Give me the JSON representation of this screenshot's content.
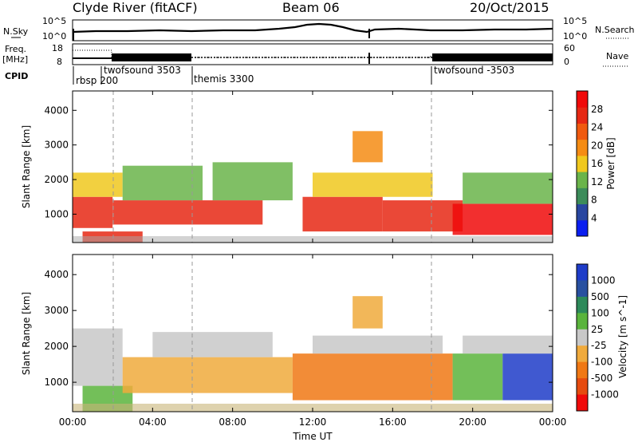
{
  "header": {
    "station": "Clyde River (fitACF)",
    "beam": "Beam 06",
    "date": "20/Oct/2015"
  },
  "strips": {
    "nsky_label": "N.Sky",
    "nsearch_label": "N.Search",
    "left_ticks": [
      "10^5",
      "10^0"
    ],
    "right_ticks": [
      "10^5",
      "10^0"
    ],
    "freq_label_line1": "Freq.",
    "freq_label_line2": "[MHz]",
    "freq_ticks": [
      "18",
      "8"
    ],
    "nave_label": "Nave",
    "nave_ticks": [
      "60",
      "0"
    ],
    "cpid_label": "CPID",
    "cpid_segments": [
      "rbsp 200",
      "twofsound 3503",
      "themis 3300",
      "twofsound -3503"
    ]
  },
  "colors": {
    "power_scale": [
      "#0a1ef0",
      "#2846a0",
      "#3c8c5a",
      "#6ab44a",
      "#f0c81e",
      "#f58c14",
      "#f05a0f",
      "#e62814",
      "#f00a0a"
    ],
    "velocity_scale": [
      "#1e3cc8",
      "#2850a0",
      "#2d8a5a",
      "#5ab43c",
      "#c8c8c8",
      "#f0aa3c",
      "#f07814",
      "#e64b0f",
      "#f00a0a"
    ],
    "ground_scatter": "#a8a8a8"
  },
  "chart_data": [
    {
      "type": "heatmap",
      "title": "",
      "xlabel": "",
      "ylabel": "Slant Range [km]",
      "xlim": [
        "00:00",
        "00:00"
      ],
      "ylim": [
        180,
        4560
      ],
      "x_ticks": [
        "00:00",
        "04:00",
        "08:00",
        "12:00",
        "16:00",
        "20:00",
        "00:00"
      ],
      "y_ticks": [
        "1000",
        "2000",
        "3000",
        "4000"
      ],
      "colorbar": {
        "label": "Power [dB]",
        "tick_labels": [
          "4",
          "8",
          "12",
          "16",
          "20",
          "24",
          "28"
        ],
        "range": [
          0,
          32
        ]
      },
      "bands": [
        {
          "t": [
            0.0,
            2.0
          ],
          "range_km": [
            600,
            1500
          ],
          "value": 26
        },
        {
          "t": [
            0.0,
            2.5
          ],
          "range_km": [
            1500,
            2200
          ],
          "value": 16
        },
        {
          "t": [
            2.0,
            6.0
          ],
          "range_km": [
            700,
            1400
          ],
          "value": 27
        },
        {
          "t": [
            2.5,
            6.5
          ],
          "range_km": [
            1400,
            2400
          ],
          "value": 14
        },
        {
          "t": [
            6.0,
            9.5
          ],
          "range_km": [
            700,
            1400
          ],
          "value": 27
        },
        {
          "t": [
            7.0,
            11.0
          ],
          "range_km": [
            1400,
            2500
          ],
          "value": 13
        },
        {
          "t": [
            11.5,
            15.5
          ],
          "range_km": [
            500,
            1500
          ],
          "value": 28
        },
        {
          "t": [
            12.0,
            18.0
          ],
          "range_km": [
            1500,
            2200
          ],
          "value": 15
        },
        {
          "t": [
            15.5,
            19.5
          ],
          "range_km": [
            500,
            1400
          ],
          "value": 27
        },
        {
          "t": [
            19.0,
            24.0
          ],
          "range_km": [
            400,
            1300
          ],
          "value": 29
        },
        {
          "t": [
            19.5,
            24.0
          ],
          "range_km": [
            1300,
            2200
          ],
          "value": 12
        },
        {
          "t": [
            14.0,
            15.5
          ],
          "range_km": [
            2500,
            3400
          ],
          "value": 20
        },
        {
          "t": [
            0.5,
            3.5
          ],
          "range_km": [
            180,
            500
          ],
          "value": 27
        }
      ]
    },
    {
      "type": "heatmap",
      "title": "",
      "xlabel": "Time UT",
      "ylabel": "Slant Range [km]",
      "xlim": [
        "00:00",
        "00:00"
      ],
      "ylim": [
        180,
        4560
      ],
      "x_ticks": [
        "00:00",
        "04:00",
        "08:00",
        "12:00",
        "16:00",
        "20:00",
        "00:00"
      ],
      "y_ticks": [
        "1000",
        "2000",
        "3000",
        "4000"
      ],
      "colorbar": {
        "label": "Velocity [m s^-1]",
        "tick_labels": [
          "1000",
          "500",
          "100",
          "25",
          "-25",
          "-100",
          "-500",
          "-1000"
        ],
        "range": [
          -1000,
          1000
        ]
      },
      "bands": [
        {
          "t": [
            0.0,
            2.5
          ],
          "range_km": [
            900,
            2500
          ],
          "value": -30
        },
        {
          "t": [
            0.5,
            3.0
          ],
          "range_km": [
            180,
            900
          ],
          "value": 200
        },
        {
          "t": [
            2.5,
            11.0
          ],
          "range_km": [
            700,
            1700
          ],
          "value": -300
        },
        {
          "t": [
            4.0,
            10.0
          ],
          "range_km": [
            1700,
            2400
          ],
          "value": -20
        },
        {
          "t": [
            11.0,
            19.0
          ],
          "range_km": [
            500,
            1800
          ],
          "value": -350
        },
        {
          "t": [
            12.0,
            18.5
          ],
          "range_km": [
            1800,
            2300
          ],
          "value": 0
        },
        {
          "t": [
            19.0,
            21.5
          ],
          "range_km": [
            500,
            1800
          ],
          "value": 300
        },
        {
          "t": [
            21.5,
            24.0
          ],
          "range_km": [
            500,
            1800
          ],
          "value": 800
        },
        {
          "t": [
            19.5,
            24.0
          ],
          "range_km": [
            1800,
            2300
          ],
          "value": 10
        },
        {
          "t": [
            14.0,
            15.5
          ],
          "range_km": [
            2500,
            3400
          ],
          "value": -150
        }
      ]
    }
  ]
}
